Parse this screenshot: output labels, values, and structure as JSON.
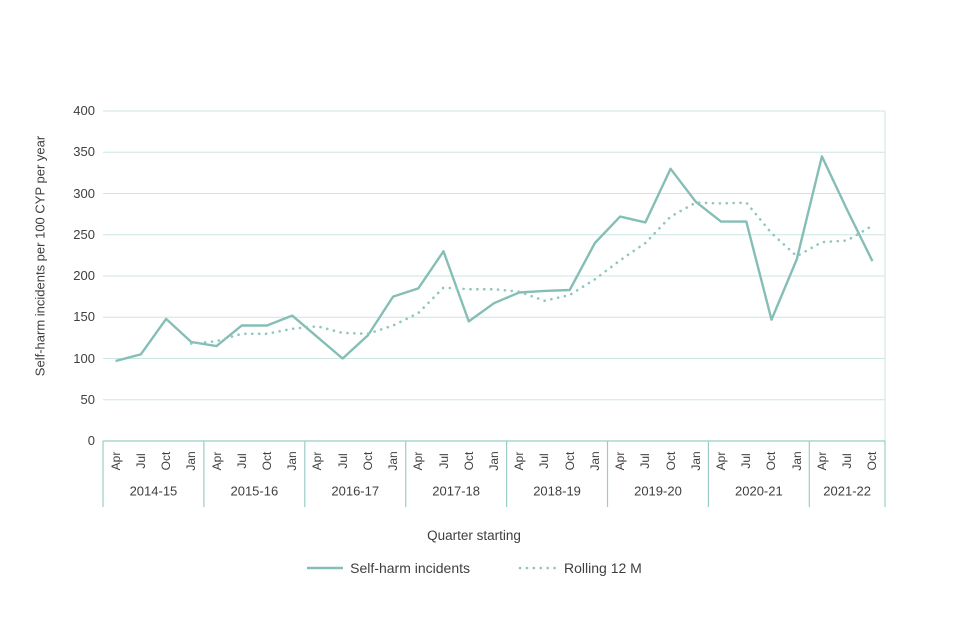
{
  "chart_data": {
    "type": "line",
    "title": "",
    "ylabel": "Self-harm incidents per 100 CYP per year",
    "xlabel": "Quarter starting",
    "ylim": [
      0,
      400
    ],
    "yticks": [
      0,
      50,
      100,
      150,
      200,
      250,
      300,
      350,
      400
    ],
    "grid": true,
    "legend_position": "bottom",
    "x_axis_levels": [
      "quarter",
      "financial-year"
    ],
    "year_groups": [
      {
        "label": "2014-15",
        "quarters": [
          "Apr",
          "Jul",
          "Oct",
          "Jan"
        ]
      },
      {
        "label": "2015-16",
        "quarters": [
          "Apr",
          "Jul",
          "Oct",
          "Jan"
        ]
      },
      {
        "label": "2016-17",
        "quarters": [
          "Apr",
          "Jul",
          "Oct",
          "Jan"
        ]
      },
      {
        "label": "2017-18",
        "quarters": [
          "Apr",
          "Jul",
          "Oct",
          "Jan"
        ]
      },
      {
        "label": "2018-19",
        "quarters": [
          "Apr",
          "Jul",
          "Oct",
          "Jan"
        ]
      },
      {
        "label": "2019-20",
        "quarters": [
          "Apr",
          "Jul",
          "Oct",
          "Jan"
        ]
      },
      {
        "label": "2020-21",
        "quarters": [
          "Apr",
          "Jul",
          "Oct",
          "Jan"
        ]
      },
      {
        "label": "2021-22",
        "quarters": [
          "Apr",
          "Jul",
          "Oct"
        ]
      }
    ],
    "series": [
      {
        "name": "Self-harm incidents",
        "style": "solid",
        "start_index": 0,
        "values": [
          97,
          105,
          148,
          120,
          115,
          140,
          140,
          152,
          126,
          100,
          128,
          175,
          185,
          230,
          145,
          167,
          180,
          182,
          183,
          240,
          272,
          265,
          330,
          290,
          266,
          266,
          147,
          220,
          345,
          280,
          218
        ]
      },
      {
        "name": "Rolling 12 M",
        "style": "dotted",
        "start_index": 3,
        "values": [
          118,
          121,
          130,
          130,
          136,
          139,
          131,
          130,
          140,
          155,
          186,
          184,
          184,
          181,
          170,
          177,
          196,
          219,
          240,
          272,
          289,
          288,
          289,
          252,
          224,
          241,
          243,
          261
        ]
      }
    ]
  },
  "colors": {
    "line_solid": "#85BEB6",
    "line_dotted": "#8FC6BE",
    "gridline": "#CCE6E2",
    "axis_line": "#9BCDC6",
    "text": "#3F3F3F",
    "background": "#FFFFFF"
  }
}
